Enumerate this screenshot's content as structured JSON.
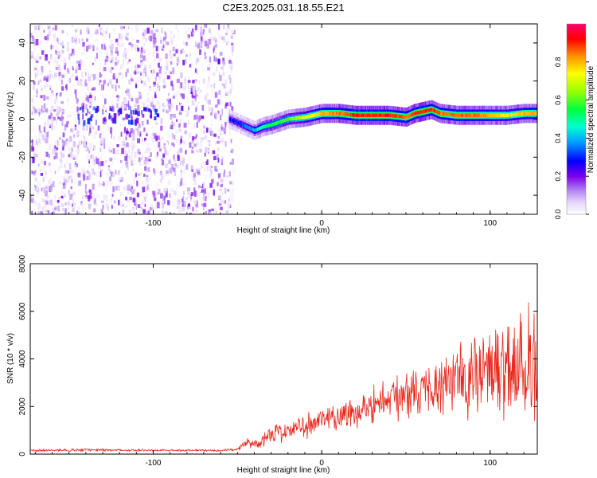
{
  "title": "C2E3.2025.031.18.55.E21",
  "colors": {
    "axis": "#000000",
    "snr_line": "#e8281c",
    "spectrogram_cmap": [
      "#ffffff",
      "#d9c7f5",
      "#9b59f0",
      "#6a00e8",
      "#0000ff",
      "#00c8ff",
      "#00ff80",
      "#80ff00",
      "#ffff00",
      "#ff8000",
      "#ff0000",
      "#ff0060"
    ]
  },
  "chart_data": [
    {
      "type": "heatmap",
      "name": "spectrogram",
      "xlabel": "Height of straight line (km)",
      "ylabel": "Frequency (Hz)",
      "xlim": [
        -173,
        128
      ],
      "ylim": [
        -50,
        50
      ],
      "xticks": [
        -100,
        0,
        100
      ],
      "xtick_labels": [
        "-100",
        "0",
        "100"
      ],
      "yticks": [
        -40,
        -20,
        0,
        20,
        40
      ],
      "ytick_labels": [
        "-40",
        "-20",
        "0",
        "20",
        "40"
      ],
      "noise_region_end_km": -53,
      "ridge": {
        "x": [
          -55,
          -50,
          -45,
          -40,
          -35,
          -30,
          -20,
          -10,
          0,
          10,
          20,
          30,
          40,
          50,
          55,
          60,
          65,
          70,
          80,
          90,
          100,
          110,
          120,
          128
        ],
        "y": [
          0,
          -2,
          -4,
          -6,
          -4,
          -3,
          0,
          1,
          3,
          3,
          2,
          2,
          2,
          1,
          3,
          4,
          5,
          3,
          2,
          2,
          2,
          2,
          3,
          3
        ],
        "normalized_amplitude": [
          0.3,
          0.3,
          0.35,
          0.4,
          0.5,
          0.55,
          0.6,
          0.7,
          0.8,
          0.85,
          0.9,
          0.9,
          0.9,
          0.85,
          0.9,
          0.9,
          0.9,
          0.85,
          0.85,
          0.85,
          0.8,
          0.75,
          0.8,
          0.8
        ]
      },
      "colorbar": {
        "label": "Normalized spectral amplitude",
        "range": [
          0,
          1
        ],
        "ticks": [
          0.0,
          0.2,
          0.4,
          0.6,
          0.8
        ],
        "tick_labels": [
          "0.0",
          "0.2",
          "0.4",
          "0.6",
          "0.8"
        ]
      }
    },
    {
      "type": "line",
      "name": "snr",
      "xlabel": "Height of straight line (km)",
      "ylabel": "SNR (10 * v/v)",
      "xlim": [
        -173,
        128
      ],
      "ylim": [
        0,
        8000
      ],
      "xticks": [
        -100,
        0,
        100
      ],
      "xtick_labels": [
        "-100",
        "0",
        "100"
      ],
      "yticks": [
        0,
        2000,
        4000,
        6000,
        8000
      ],
      "ytick_labels": [
        "0",
        "2000",
        "4000",
        "6000",
        "8000"
      ],
      "series": [
        {
          "x": [
            -173,
            -160,
            -140,
            -120,
            -100,
            -80,
            -60,
            -50,
            -45,
            -40,
            -35,
            -30,
            -25,
            -20,
            -15,
            -10,
            -5,
            0,
            5,
            10,
            15,
            20,
            25,
            30,
            35,
            40,
            45,
            50,
            55,
            60,
            65,
            70,
            75,
            80,
            85,
            90,
            95,
            100,
            105,
            110,
            115,
            120,
            125,
            128
          ],
          "y": [
            150,
            160,
            170,
            170,
            160,
            160,
            150,
            200,
            500,
            400,
            600,
            800,
            900,
            1000,
            1100,
            1200,
            1300,
            1400,
            1500,
            1600,
            1700,
            1800,
            1900,
            2100,
            2200,
            2300,
            2400,
            2500,
            2600,
            2700,
            2800,
            2900,
            3000,
            3100,
            3200,
            3300,
            3400,
            3500,
            3600,
            3700,
            3800,
            3900,
            4000,
            4100
          ],
          "spread": [
            60,
            60,
            80,
            60,
            50,
            50,
            50,
            80,
            200,
            250,
            400,
            500,
            500,
            500,
            550,
            600,
            600,
            650,
            700,
            750,
            800,
            850,
            900,
            950,
            1000,
            1050,
            1100,
            1150,
            1200,
            1250,
            1300,
            1400,
            1500,
            1700,
            1900,
            2100,
            2300,
            2400,
            2600,
            2800,
            3000,
            3100,
            3200,
            3300
          ]
        }
      ]
    }
  ]
}
